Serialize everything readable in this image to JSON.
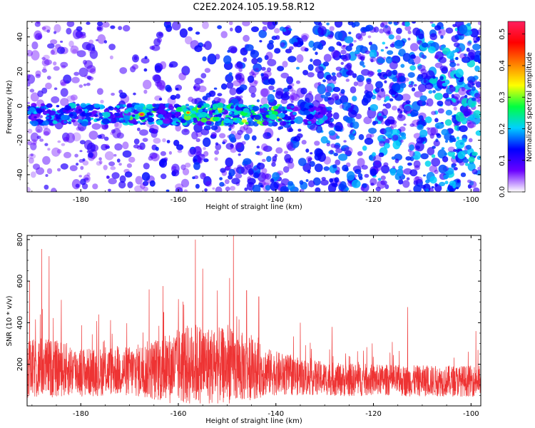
{
  "title": "C2E2.2024.105.19.58.R12",
  "chart_data": [
    {
      "type": "heatmap",
      "xlabel": "Height of straight line (km)",
      "ylabel": "Frequency (Hz)",
      "xlim": [
        -191,
        -98
      ],
      "ylim": [
        -50,
        49
      ],
      "xticks": [
        "-180",
        "-160",
        "-140",
        "-120",
        "-100"
      ],
      "yticks": [
        "-40",
        "-20",
        "0",
        "20",
        "40"
      ],
      "colorbar": {
        "label": "Normalized spectral amplitude",
        "range": [
          0,
          0.54
        ],
        "ticks": [
          "0.0",
          "0.1",
          "0.2",
          "0.3",
          "0.4",
          "0.5"
        ],
        "colormap": [
          "#ffffff",
          "#6a00ff",
          "#0000ff",
          "#00d0ff",
          "#00ff40",
          "#ffff00",
          "#ff8000",
          "#ff0000",
          "#ff2060"
        ]
      },
      "ridge": {
        "frequency_hz": -5,
        "x_range": [
          -191,
          -129
        ],
        "peak_amplitude": 0.54,
        "peak_x": -167.5
      }
    },
    {
      "type": "line",
      "xlabel": "Height of straight line (km)",
      "ylabel": "SNR (10 * v/v)",
      "xlim": [
        -191,
        -98
      ],
      "ylim": [
        0,
        820
      ],
      "xticks": [
        "-180",
        "-160",
        "-140",
        "-120",
        "-100"
      ],
      "yticks": [
        "200",
        "400",
        "600",
        "800"
      ],
      "series": [
        {
          "color": "#ee3333",
          "envelope_x": [
            -191,
            -188,
            -186,
            -183,
            -180,
            -177,
            -174,
            -171,
            -168,
            -165,
            -162,
            -159,
            -156,
            -153,
            -150,
            -147,
            -144,
            -141,
            -138,
            -135,
            -132,
            -129,
            -126,
            -123,
            -120,
            -117,
            -114,
            -111,
            -108,
            -105,
            -102,
            -99
          ],
          "baseline": [
            170,
            185,
            180,
            175,
            165,
            160,
            170,
            165,
            170,
            175,
            180,
            195,
            200,
            195,
            190,
            185,
            175,
            160,
            150,
            140,
            135,
            130,
            125,
            125,
            125,
            125,
            120,
            120,
            120,
            120,
            120,
            120
          ],
          "spread": [
            140,
            150,
            140,
            130,
            120,
            115,
            120,
            120,
            130,
            150,
            170,
            190,
            200,
            190,
            180,
            170,
            140,
            110,
            100,
            90,
            85,
            80,
            80,
            80,
            75,
            75,
            75,
            75,
            75,
            75,
            75,
            75
          ],
          "peaks": [
            {
              "x": -190.5,
              "y": 600
            },
            {
              "x": -188.0,
              "y": 755
            },
            {
              "x": -186.5,
              "y": 720
            },
            {
              "x": -184.0,
              "y": 510
            },
            {
              "x": -166.0,
              "y": 560
            },
            {
              "x": -163.0,
              "y": 450
            },
            {
              "x": -156.5,
              "y": 800
            },
            {
              "x": -155.0,
              "y": 660
            },
            {
              "x": -152.0,
              "y": 555
            },
            {
              "x": -149.5,
              "y": 615
            },
            {
              "x": -148.7,
              "y": 820
            },
            {
              "x": -146.0,
              "y": 555
            },
            {
              "x": -143.5,
              "y": 525
            },
            {
              "x": -135.0,
              "y": 400
            },
            {
              "x": -128.5,
              "y": 380
            },
            {
              "x": -113.0,
              "y": 475
            },
            {
              "x": -99.0,
              "y": 360
            }
          ]
        }
      ]
    }
  ]
}
